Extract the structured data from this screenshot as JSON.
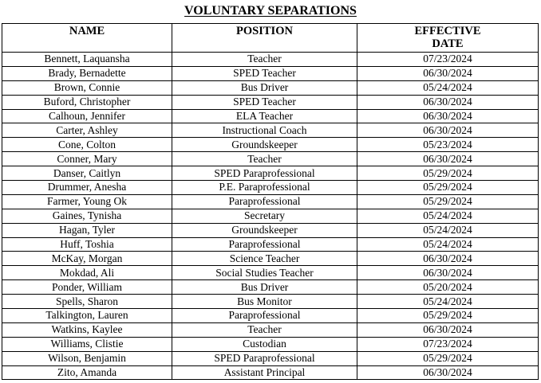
{
  "title": "VOLUNTARY SEPARATIONS",
  "columns": {
    "name": "NAME",
    "position": "POSITION",
    "effective_line1": "EFFECTIVE",
    "effective_line2": "DATE"
  },
  "rows": [
    {
      "name": "Bennett, Laquansha",
      "position": "Teacher",
      "date": "07/23/2024"
    },
    {
      "name": "Brady, Bernadette",
      "position": "SPED Teacher",
      "date": "06/30/2024"
    },
    {
      "name": "Brown, Connie",
      "position": "Bus Driver",
      "date": "05/24/2024"
    },
    {
      "name": "Buford, Christopher",
      "position": "SPED Teacher",
      "date": "06/30/2024"
    },
    {
      "name": "Calhoun, Jennifer",
      "position": "ELA Teacher",
      "date": "06/30/2024"
    },
    {
      "name": "Carter, Ashley",
      "position": "Instructional Coach",
      "date": "06/30/2024"
    },
    {
      "name": "Cone, Colton",
      "position": "Groundskeeper",
      "date": "05/23/2024"
    },
    {
      "name": "Conner, Mary",
      "position": "Teacher",
      "date": "06/30/2024"
    },
    {
      "name": "Danser, Caitlyn",
      "position": "SPED Paraprofessional",
      "date": "05/29/2024"
    },
    {
      "name": "Drummer, Anesha",
      "position": "P.E. Paraprofessional",
      "date": "05/29/2024"
    },
    {
      "name": "Farmer, Young Ok",
      "position": "Paraprofessional",
      "date": "05/29/2024"
    },
    {
      "name": "Gaines, Tynisha",
      "position": "Secretary",
      "date": "05/24/2024"
    },
    {
      "name": "Hagan, Tyler",
      "position": "Groundskeeper",
      "date": "05/24/2024"
    },
    {
      "name": "Huff, Toshia",
      "position": "Paraprofessional",
      "date": "05/24/2024"
    },
    {
      "name": "McKay, Morgan",
      "position": "Science Teacher",
      "date": "06/30/2024"
    },
    {
      "name": "Mokdad, Ali",
      "position": "Social Studies Teacher",
      "date": "06/30/2024"
    },
    {
      "name": "Ponder, William",
      "position": "Bus Driver",
      "date": "05/20/2024"
    },
    {
      "name": "Spells, Sharon",
      "position": "Bus Monitor",
      "date": "05/24/2024"
    },
    {
      "name": "Talkington, Lauren",
      "position": "Paraprofessional",
      "date": "05/29/2024"
    },
    {
      "name": "Watkins, Kaylee",
      "position": "Teacher",
      "date": "06/30/2024"
    },
    {
      "name": "Williams, Clistie",
      "position": "Custodian",
      "date": "07/23/2024"
    },
    {
      "name": "Wilson, Benjamin",
      "position": "SPED Paraprofessional",
      "date": "05/29/2024"
    },
    {
      "name": "Zito, Amanda",
      "position": "Assistant Principal",
      "date": "06/30/2024"
    }
  ]
}
